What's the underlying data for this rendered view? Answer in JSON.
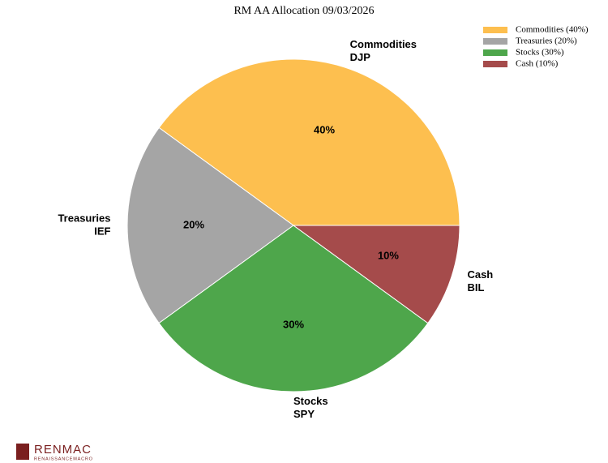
{
  "chart_data": {
    "type": "pie",
    "title": "RM AA Allocation 09/03/2026",
    "categories": [
      "Commodities",
      "Treasuries",
      "Stocks",
      "Cash"
    ],
    "tickers": [
      "DJP",
      "IEF",
      "SPY",
      "BIL"
    ],
    "values": [
      40,
      20,
      30,
      10
    ],
    "value_labels": [
      "40%",
      "20%",
      "30%",
      "10%"
    ],
    "legend_labels": [
      "Commodities (40%)",
      "Treasuries (20%)",
      "Stocks (30%)",
      "Cash (10%)"
    ],
    "colors": [
      "#fdbf4f",
      "#a5a5a5",
      "#4ea64b",
      "#a54b4b"
    ],
    "legend": "upper right"
  },
  "logo": {
    "text": "RENMAC",
    "subtext": "RENAISSANCEMACRO"
  }
}
